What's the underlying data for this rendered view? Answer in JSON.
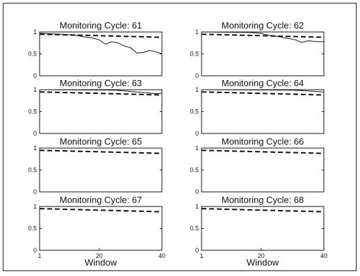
{
  "chart_data": [
    {
      "type": "line",
      "title": "Monitoring Cycle: 61",
      "xlabel": "",
      "xlim": [
        1,
        40
      ],
      "ylim": [
        0,
        1
      ],
      "xticks": [],
      "yticks": [
        "0",
        "0.5",
        "1"
      ],
      "series": [
        {
          "style": "solid",
          "x": [
            1,
            8,
            12,
            16,
            18,
            20,
            22,
            24,
            26,
            28,
            30,
            32,
            34,
            36,
            38,
            40
          ],
          "values": [
            0.97,
            0.95,
            0.93,
            0.88,
            0.86,
            0.82,
            0.72,
            0.78,
            0.75,
            0.68,
            0.64,
            0.52,
            0.53,
            0.58,
            0.55,
            0.5
          ]
        },
        {
          "style": "dashed",
          "x": [
            1,
            40
          ],
          "values": [
            0.95,
            0.88
          ]
        }
      ]
    },
    {
      "type": "line",
      "title": "Monitoring Cycle: 62",
      "xlabel": "",
      "xlim": [
        1,
        40
      ],
      "ylim": [
        0,
        1
      ],
      "xticks": [],
      "yticks": [
        "0",
        "0.5",
        "1"
      ],
      "series": [
        {
          "style": "solid",
          "x": [
            1,
            16,
            20,
            22,
            25,
            28,
            31,
            33,
            35,
            38,
            40
          ],
          "values": [
            1.0,
            0.99,
            0.97,
            0.93,
            0.9,
            0.86,
            0.82,
            0.76,
            0.8,
            0.78,
            0.78
          ]
        },
        {
          "style": "dashed",
          "x": [
            1,
            40
          ],
          "values": [
            0.95,
            0.88
          ]
        }
      ]
    },
    {
      "type": "line",
      "title": "Monitoring Cycle: 63",
      "xlabel": "",
      "xlim": [
        1,
        40
      ],
      "ylim": [
        0,
        1
      ],
      "xticks": [],
      "yticks": [
        "0",
        "0.5",
        "1"
      ],
      "series": [
        {
          "style": "solid",
          "x": [
            1,
            25,
            30,
            35,
            38,
            40
          ],
          "values": [
            1.0,
            0.99,
            0.96,
            0.93,
            0.91,
            0.92
          ]
        },
        {
          "style": "dashed",
          "x": [
            1,
            40
          ],
          "values": [
            0.95,
            0.88
          ]
        }
      ]
    },
    {
      "type": "line",
      "title": "Monitoring Cycle: 64",
      "xlabel": "",
      "xlim": [
        1,
        40
      ],
      "ylim": [
        0,
        1
      ],
      "xticks": [],
      "yticks": [
        "0",
        "0.5",
        "1"
      ],
      "series": [
        {
          "style": "solid",
          "x": [
            1,
            30,
            35,
            40
          ],
          "values": [
            1.0,
            0.99,
            0.97,
            0.95
          ]
        },
        {
          "style": "dashed",
          "x": [
            1,
            40
          ],
          "values": [
            0.95,
            0.88
          ]
        }
      ]
    },
    {
      "type": "line",
      "title": "Monitoring Cycle: 65",
      "xlabel": "",
      "xlim": [
        1,
        40
      ],
      "ylim": [
        0,
        1
      ],
      "xticks": [],
      "yticks": [
        "0",
        "0.5",
        "1"
      ],
      "series": [
        {
          "style": "solid",
          "x": [
            1,
            40
          ],
          "values": [
            1.0,
            1.0
          ]
        },
        {
          "style": "dashed",
          "x": [
            1,
            40
          ],
          "values": [
            0.95,
            0.88
          ]
        }
      ]
    },
    {
      "type": "line",
      "title": "Monitoring Cycle: 66",
      "xlabel": "",
      "xlim": [
        1,
        40
      ],
      "ylim": [
        0,
        1
      ],
      "xticks": [],
      "yticks": [
        "0",
        "0.5",
        "1"
      ],
      "series": [
        {
          "style": "solid",
          "x": [
            1,
            40
          ],
          "values": [
            1.0,
            1.0
          ]
        },
        {
          "style": "dashed",
          "x": [
            1,
            40
          ],
          "values": [
            0.95,
            0.88
          ]
        }
      ]
    },
    {
      "type": "line",
      "title": "Monitoring Cycle: 67",
      "xlabel": "Window",
      "xlim": [
        1,
        40
      ],
      "ylim": [
        0,
        1
      ],
      "xticks": [
        "1",
        "20",
        "40"
      ],
      "yticks": [
        "0",
        "0.5",
        "1"
      ],
      "series": [
        {
          "style": "solid",
          "x": [
            1,
            40
          ],
          "values": [
            1.0,
            1.0
          ]
        },
        {
          "style": "dashed",
          "x": [
            1,
            40
          ],
          "values": [
            0.95,
            0.88
          ]
        }
      ]
    },
    {
      "type": "line",
      "title": "Monitoring Cycle: 68",
      "xlabel": "Window",
      "xlim": [
        1,
        40
      ],
      "ylim": [
        0,
        1
      ],
      "xticks": [
        "1",
        "20",
        "40"
      ],
      "yticks": [
        "0",
        "0.5",
        "1"
      ],
      "series": [
        {
          "style": "solid",
          "x": [
            1,
            40
          ],
          "values": [
            1.0,
            1.0
          ]
        },
        {
          "style": "dashed",
          "x": [
            1,
            40
          ],
          "values": [
            0.95,
            0.88
          ]
        }
      ]
    }
  ]
}
